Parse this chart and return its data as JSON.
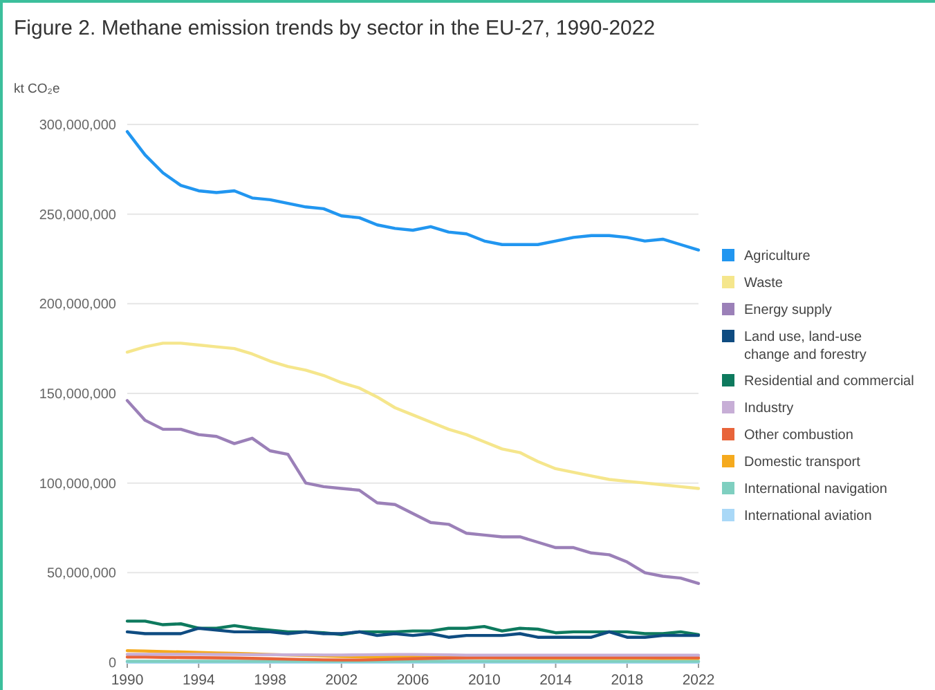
{
  "chart_data": {
    "type": "line",
    "title": "Figure 2. Methane emission trends by sector in the EU-27, 1990-2022",
    "ylabel": "kt CO₂e",
    "x": [
      1990,
      1991,
      1992,
      1993,
      1994,
      1995,
      1996,
      1997,
      1998,
      1999,
      2000,
      2001,
      2002,
      2003,
      2004,
      2005,
      2006,
      2007,
      2008,
      2009,
      2010,
      2011,
      2012,
      2013,
      2014,
      2015,
      2016,
      2017,
      2018,
      2019,
      2020,
      2021,
      2022
    ],
    "xlim": [
      1990,
      2022
    ],
    "xticks": [
      1990,
      1994,
      1998,
      2002,
      2006,
      2010,
      2014,
      2018,
      2022
    ],
    "ylim": [
      0,
      300000000
    ],
    "yticks": [
      {
        "value": 0,
        "label": "0"
      },
      {
        "value": 50000000,
        "label": "50,000,000"
      },
      {
        "value": 100000000,
        "label": "100,000,000"
      },
      {
        "value": 150000000,
        "label": "150,000,000"
      },
      {
        "value": 200000000,
        "label": "200,000,000"
      },
      {
        "value": 250000000,
        "label": "250,000,000"
      },
      {
        "value": 300000000,
        "label": "300,000,000"
      }
    ],
    "grid": "y",
    "legend": "right",
    "marker": "none",
    "line_style": "solid",
    "series": [
      {
        "name": "Agriculture",
        "color": "#2196f0",
        "values": [
          296000000,
          283000000,
          273000000,
          266000000,
          263000000,
          262000000,
          263000000,
          259000000,
          258000000,
          256000000,
          254000000,
          253000000,
          249000000,
          248000000,
          244000000,
          242000000,
          241000000,
          243000000,
          240000000,
          239000000,
          235000000,
          233000000,
          233000000,
          233000000,
          235000000,
          237000000,
          238000000,
          238000000,
          237000000,
          235000000,
          236000000,
          233000000,
          230000000
        ]
      },
      {
        "name": "Waste",
        "color": "#f5e68c",
        "values": [
          173000000,
          176000000,
          178000000,
          178000000,
          177000000,
          176000000,
          175000000,
          172000000,
          168000000,
          165000000,
          163000000,
          160000000,
          156000000,
          153000000,
          148000000,
          142000000,
          138000000,
          134000000,
          130000000,
          127000000,
          123000000,
          119000000,
          117000000,
          112000000,
          108000000,
          106000000,
          104000000,
          102000000,
          101000000,
          100000000,
          99000000,
          98000000,
          97000000
        ]
      },
      {
        "name": "Energy supply",
        "color": "#9b80b8",
        "values": [
          146000000,
          135000000,
          130000000,
          130000000,
          127000000,
          126000000,
          122000000,
          125000000,
          118000000,
          116000000,
          100000000,
          98000000,
          97000000,
          96000000,
          89000000,
          88000000,
          83000000,
          78000000,
          77000000,
          72000000,
          71000000,
          70000000,
          70000000,
          67000000,
          64000000,
          64000000,
          61000000,
          60000000,
          56000000,
          50000000,
          48000000,
          47000000,
          44000000
        ]
      },
      {
        "name": "Land use, land-use change and forestry",
        "color": "#0f4c81",
        "values": [
          17000000,
          16000000,
          16000000,
          16000000,
          19000000,
          18000000,
          17000000,
          17000000,
          17000000,
          16000000,
          17000000,
          16000000,
          16000000,
          17000000,
          15000000,
          16000000,
          15000000,
          16000000,
          14000000,
          15000000,
          15000000,
          15000000,
          16000000,
          14000000,
          14000000,
          14000000,
          14000000,
          17000000,
          14000000,
          14000000,
          15000000,
          15000000,
          15000000
        ]
      },
      {
        "name": "Residential and commercial",
        "color": "#0e7a5e",
        "values": [
          23000000,
          23000000,
          21000000,
          21500000,
          19000000,
          19000000,
          20500000,
          19000000,
          18000000,
          17000000,
          17000000,
          16500000,
          15500000,
          17000000,
          17000000,
          17000000,
          17500000,
          17500000,
          19000000,
          19000000,
          20000000,
          17500000,
          19000000,
          18500000,
          16500000,
          17000000,
          17000000,
          17000000,
          17000000,
          16000000,
          16000000,
          17000000,
          15500000
        ]
      },
      {
        "name": "Industry",
        "color": "#c7aed6",
        "values": [
          4500000,
          4500000,
          4500000,
          4500000,
          4500000,
          4400000,
          4400000,
          4300000,
          4300000,
          4200000,
          4200000,
          4100000,
          4100000,
          4200000,
          4300000,
          4400000,
          4400000,
          4300000,
          4200000,
          4000000,
          4000000,
          4000000,
          4000000,
          4000000,
          4000000,
          4000000,
          4000000,
          4000000,
          4000000,
          4000000,
          4000000,
          4000000,
          4000000
        ]
      },
      {
        "name": "Other combustion",
        "color": "#e8643a",
        "values": [
          3000000,
          3000000,
          2800000,
          2700000,
          2600000,
          2500000,
          2400000,
          2200000,
          2000000,
          1800000,
          1600000,
          1400000,
          1300000,
          1300000,
          1500000,
          1800000,
          2000000,
          2200000,
          2400000,
          2500000,
          2600000,
          2600000,
          2700000,
          2700000,
          2700000,
          2700000,
          2700000,
          2700000,
          2700000,
          2700000,
          2600000,
          2700000,
          2600000
        ]
      },
      {
        "name": "Domestic transport",
        "color": "#f5aa1e",
        "values": [
          6500000,
          6300000,
          6000000,
          5800000,
          5500000,
          5200000,
          5000000,
          4700000,
          4400000,
          4100000,
          3800000,
          3500000,
          3300000,
          3100000,
          3000000,
          3000000,
          3000000,
          2900000,
          2800000,
          2700000,
          2600000,
          2500000,
          2400000,
          2300000,
          2300000,
          2300000,
          2300000,
          2300000,
          2300000,
          2300000,
          2200000,
          2200000,
          2200000
        ]
      },
      {
        "name": "International navigation",
        "color": "#7fcfc0",
        "values": [
          600000,
          600000,
          600000,
          600000,
          600000,
          600000,
          600000,
          600000,
          600000,
          600000,
          600000,
          600000,
          600000,
          600000,
          600000,
          600000,
          600000,
          600000,
          600000,
          600000,
          600000,
          600000,
          600000,
          600000,
          600000,
          600000,
          600000,
          600000,
          600000,
          600000,
          600000,
          600000,
          600000
        ]
      },
      {
        "name": "International aviation",
        "color": "#a9d8f7",
        "values": [
          100000,
          100000,
          100000,
          100000,
          100000,
          100000,
          100000,
          100000,
          100000,
          100000,
          100000,
          100000,
          100000,
          100000,
          100000,
          100000,
          100000,
          100000,
          100000,
          100000,
          100000,
          100000,
          100000,
          100000,
          100000,
          100000,
          100000,
          100000,
          100000,
          100000,
          100000,
          100000,
          100000
        ]
      }
    ]
  }
}
